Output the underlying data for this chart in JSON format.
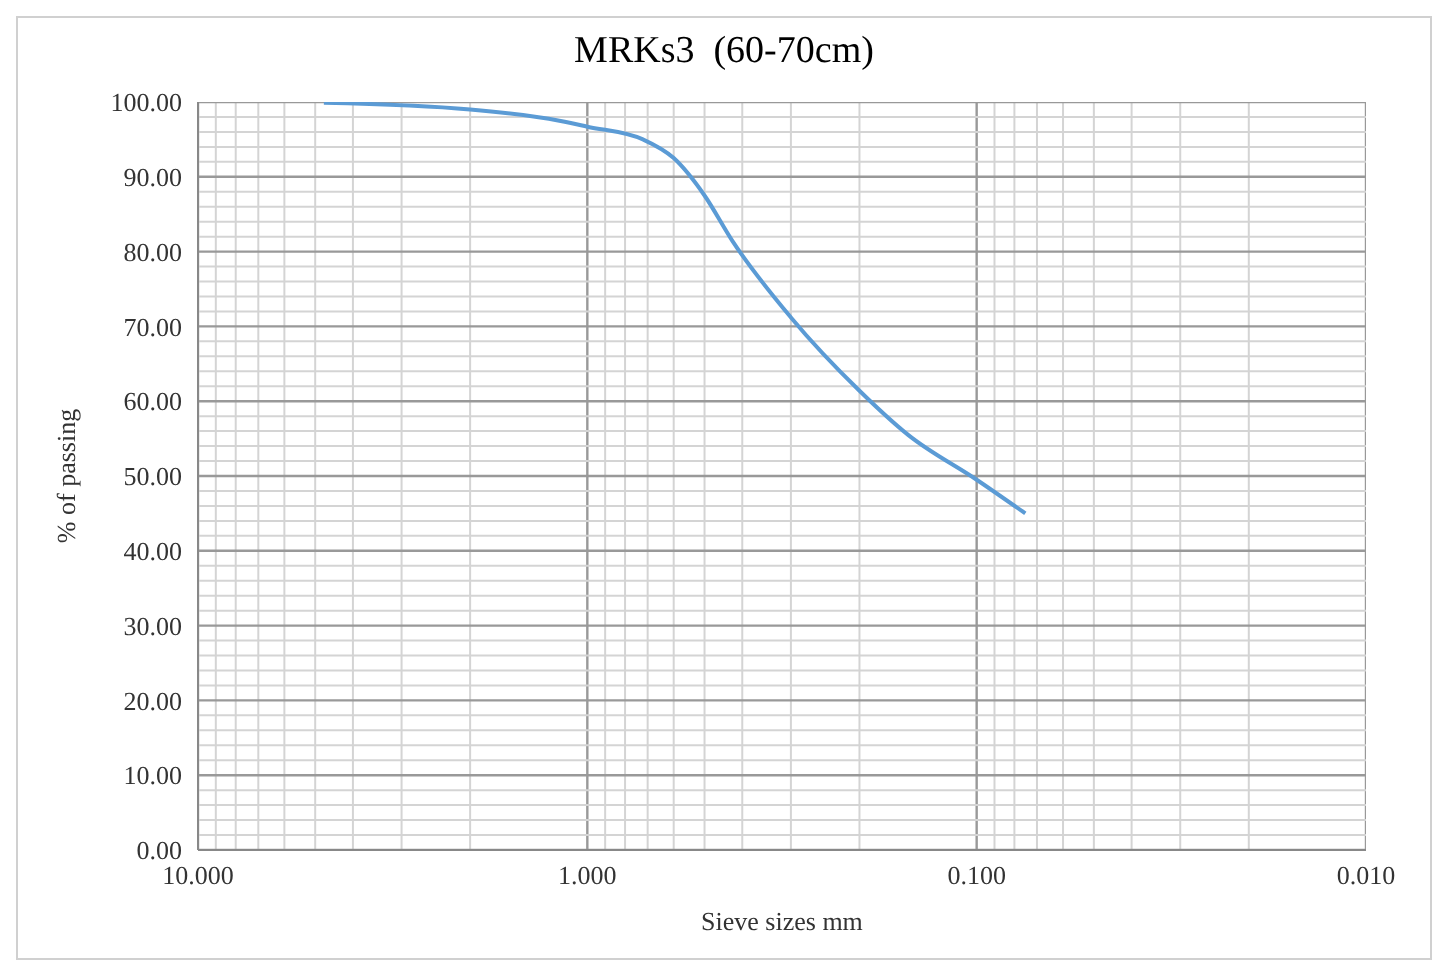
{
  "chart_data": {
    "type": "line",
    "title": "MRKs3  (60-70cm)",
    "xlabel": "Sieve sizes mm",
    "ylabel": "% of passing",
    "x": [
      4.75,
      2,
      1.18,
      1,
      0.72,
      0.6,
      0.5,
      0.425,
      0.3,
      0.2,
      0.15,
      0.1,
      0.075
    ],
    "series": [
      {
        "color": "#5b9bd5",
        "values": [
          99.9,
          99,
          97.5,
          96.7,
          95,
          92.5,
          87.5,
          81.5,
          71.2,
          61.4,
          55.5,
          49.5,
          45
        ]
      }
    ],
    "log": "x",
    "xlim": [
      10,
      0.01
    ],
    "xticks": [
      {
        "value": 10,
        "label": "10.000"
      },
      {
        "value": 9,
        "label": null
      },
      {
        "value": 8,
        "label": null
      },
      {
        "value": 7,
        "label": null
      },
      {
        "value": 6,
        "label": null
      },
      {
        "value": 5,
        "label": null
      },
      {
        "value": 4,
        "label": null
      },
      {
        "value": 3,
        "label": null
      },
      {
        "value": 2,
        "label": null
      },
      {
        "value": 1,
        "label": "1.000"
      },
      {
        "value": 0.9,
        "label": null
      },
      {
        "value": 0.8,
        "label": null
      },
      {
        "value": 0.7,
        "label": null
      },
      {
        "value": 0.6,
        "label": null
      },
      {
        "value": 0.5,
        "label": null
      },
      {
        "value": 0.4,
        "label": null
      },
      {
        "value": 0.3,
        "label": null
      },
      {
        "value": 0.2,
        "label": null
      },
      {
        "value": 0.1,
        "label": "0.100"
      },
      {
        "value": 0.09,
        "label": null
      },
      {
        "value": 0.08,
        "label": null
      },
      {
        "value": 0.07,
        "label": null
      },
      {
        "value": 0.06,
        "label": null
      },
      {
        "value": 0.05,
        "label": null
      },
      {
        "value": 0.04,
        "label": null
      },
      {
        "value": 0.03,
        "label": null
      },
      {
        "value": 0.02,
        "label": null
      },
      {
        "value": 0.01,
        "label": "0.010"
      }
    ],
    "ylim": [
      0,
      100
    ],
    "yticks": [
      {
        "value": 0,
        "label": "0.00"
      },
      {
        "value": 2,
        "label": null
      },
      {
        "value": 4,
        "label": null
      },
      {
        "value": 6,
        "label": null
      },
      {
        "value": 8,
        "label": null
      },
      {
        "value": 10,
        "label": "10.00"
      },
      {
        "value": 12,
        "label": null
      },
      {
        "value": 14,
        "label": null
      },
      {
        "value": 16,
        "label": null
      },
      {
        "value": 18,
        "label": null
      },
      {
        "value": 20,
        "label": "20.00"
      },
      {
        "value": 22,
        "label": null
      },
      {
        "value": 24,
        "label": null
      },
      {
        "value": 26,
        "label": null
      },
      {
        "value": 28,
        "label": null
      },
      {
        "value": 30,
        "label": "30.00"
      },
      {
        "value": 32,
        "label": null
      },
      {
        "value": 34,
        "label": null
      },
      {
        "value": 36,
        "label": null
      },
      {
        "value": 38,
        "label": null
      },
      {
        "value": 40,
        "label": "40.00"
      },
      {
        "value": 42,
        "label": null
      },
      {
        "value": 44,
        "label": null
      },
      {
        "value": 46,
        "label": null
      },
      {
        "value": 48,
        "label": null
      },
      {
        "value": 50,
        "label": "50.00"
      },
      {
        "value": 52,
        "label": null
      },
      {
        "value": 54,
        "label": null
      },
      {
        "value": 56,
        "label": null
      },
      {
        "value": 58,
        "label": null
      },
      {
        "value": 60,
        "label": "60.00"
      },
      {
        "value": 62,
        "label": null
      },
      {
        "value": 64,
        "label": null
      },
      {
        "value": 66,
        "label": null
      },
      {
        "value": 68,
        "label": null
      },
      {
        "value": 70,
        "label": "70.00"
      },
      {
        "value": 72,
        "label": null
      },
      {
        "value": 74,
        "label": null
      },
      {
        "value": 76,
        "label": null
      },
      {
        "value": 78,
        "label": null
      },
      {
        "value": 80,
        "label": "80.00"
      },
      {
        "value": 82,
        "label": null
      },
      {
        "value": 84,
        "label": null
      },
      {
        "value": 86,
        "label": null
      },
      {
        "value": 88,
        "label": null
      },
      {
        "value": 90,
        "label": "90.00"
      },
      {
        "value": 92,
        "label": null
      },
      {
        "value": 94,
        "label": null
      },
      {
        "value": 96,
        "label": null
      },
      {
        "value": 98,
        "label": null
      },
      {
        "value": 100,
        "label": "100.00"
      }
    ],
    "grid": true,
    "marker": "none",
    "line_style": "solid"
  }
}
